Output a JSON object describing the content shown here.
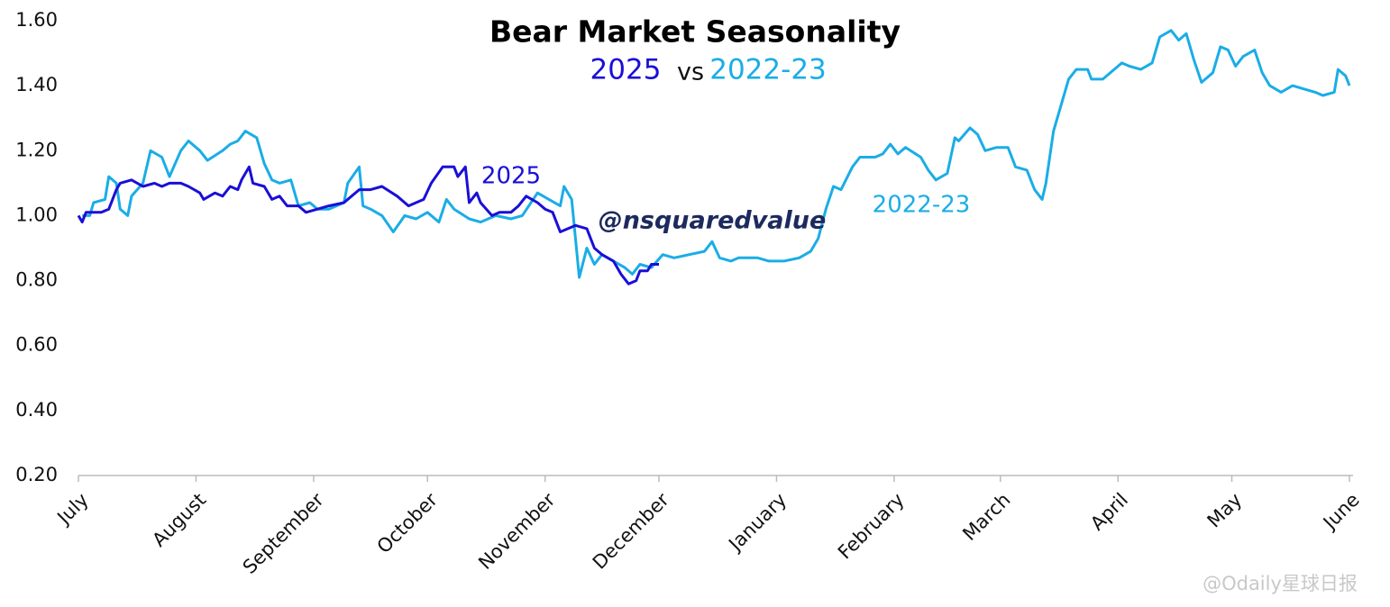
{
  "chart_data": {
    "type": "line",
    "title": "Bear Market Seasonality",
    "subtitle_connector": "vs",
    "xlim": [
      0,
      335
    ],
    "xticks": [
      {
        "value": 0,
        "label": "July"
      },
      {
        "value": 31,
        "label": "August"
      },
      {
        "value": 62,
        "label": "September"
      },
      {
        "value": 92,
        "label": "October"
      },
      {
        "value": 123,
        "label": "November"
      },
      {
        "value": 153,
        "label": "December"
      },
      {
        "value": 184,
        "label": "January"
      },
      {
        "value": 215,
        "label": "February"
      },
      {
        "value": 243,
        "label": "March"
      },
      {
        "value": 274,
        "label": "April"
      },
      {
        "value": 304,
        "label": "May"
      },
      {
        "value": 335,
        "label": "June"
      }
    ],
    "ylim": [
      0.2,
      1.6
    ],
    "yticks": [
      {
        "value": 0.2,
        "label": "0.20"
      },
      {
        "value": 0.4,
        "label": "0.40"
      },
      {
        "value": 0.6,
        "label": "0.60"
      },
      {
        "value": 0.8,
        "label": "0.80"
      },
      {
        "value": 1.0,
        "label": "1.00"
      },
      {
        "value": 1.2,
        "label": "1.20"
      },
      {
        "value": 1.4,
        "label": "1.40"
      },
      {
        "value": 1.6,
        "label": "1.60"
      }
    ],
    "series": [
      {
        "name": "2022-23",
        "color": "#1aade6",
        "x": [
          1,
          3,
          4,
          7,
          8,
          10,
          11,
          13,
          14,
          17,
          19,
          22,
          24,
          27,
          29,
          32,
          34,
          38,
          40,
          42,
          44,
          47,
          49,
          51,
          53,
          56,
          58,
          61,
          63,
          66,
          70,
          71,
          74,
          75,
          77,
          80,
          83,
          86,
          89,
          92,
          95,
          97,
          99,
          103,
          106,
          110,
          114,
          117,
          121,
          124,
          127,
          128,
          130,
          131,
          132,
          134,
          136,
          138,
          141,
          144,
          146,
          148,
          151,
          154,
          157,
          161,
          165,
          167,
          169,
          172,
          174,
          179,
          182,
          186,
          190,
          193,
          195,
          197,
          199,
          201,
          204,
          206,
          210,
          212,
          214,
          216,
          218,
          222,
          224,
          226,
          229,
          231,
          232,
          235,
          237,
          239,
          242,
          245,
          247,
          250,
          252,
          254,
          255,
          257,
          258,
          261,
          263,
          266,
          267,
          270,
          273,
          275,
          277,
          280,
          283,
          285,
          288,
          290,
          292,
          294,
          296,
          299,
          301,
          303,
          305,
          307,
          310,
          312,
          314,
          317,
          320,
          323,
          326,
          328,
          331,
          332,
          334,
          335
        ],
        "values": [
          1.0,
          1.0,
          1.04,
          1.05,
          1.12,
          1.1,
          1.02,
          1.0,
          1.06,
          1.1,
          1.2,
          1.18,
          1.12,
          1.2,
          1.23,
          1.2,
          1.17,
          1.2,
          1.22,
          1.23,
          1.26,
          1.24,
          1.16,
          1.11,
          1.1,
          1.11,
          1.03,
          1.04,
          1.02,
          1.02,
          1.04,
          1.1,
          1.15,
          1.03,
          1.02,
          1.0,
          0.95,
          1.0,
          0.99,
          1.01,
          0.98,
          1.05,
          1.02,
          0.99,
          0.98,
          1.0,
          0.99,
          1.0,
          1.07,
          1.05,
          1.03,
          1.09,
          1.05,
          0.93,
          0.81,
          0.9,
          0.85,
          0.88,
          0.86,
          0.84,
          0.82,
          0.85,
          0.84,
          0.88,
          0.87,
          0.88,
          0.89,
          0.92,
          0.87,
          0.86,
          0.87,
          0.87,
          0.86,
          0.86,
          0.87,
          0.89,
          0.93,
          1.02,
          1.09,
          1.08,
          1.15,
          1.18,
          1.18,
          1.19,
          1.22,
          1.19,
          1.21,
          1.18,
          1.14,
          1.11,
          1.13,
          1.24,
          1.23,
          1.27,
          1.25,
          1.2,
          1.21,
          1.21,
          1.15,
          1.14,
          1.08,
          1.05,
          1.1,
          1.26,
          1.3,
          1.42,
          1.45,
          1.45,
          1.42,
          1.42,
          1.45,
          1.47,
          1.46,
          1.45,
          1.47,
          1.55,
          1.57,
          1.54,
          1.56,
          1.48,
          1.41,
          1.44,
          1.52,
          1.51,
          1.46,
          1.49,
          1.51,
          1.44,
          1.4,
          1.38,
          1.4,
          1.39,
          1.38,
          1.37,
          1.38,
          1.45,
          1.43,
          1.4
        ]
      },
      {
        "name": "2025",
        "color": "#1a0fd6",
        "x": [
          0,
          1,
          2,
          4,
          6,
          8,
          10,
          11,
          14,
          17,
          20,
          22,
          24,
          27,
          29,
          32,
          33,
          36,
          38,
          40,
          42,
          43,
          45,
          46,
          49,
          51,
          53,
          55,
          58,
          60,
          63,
          66,
          70,
          72,
          74,
          77,
          80,
          84,
          87,
          89,
          91,
          93,
          96,
          99,
          100,
          102,
          103,
          105,
          106,
          109,
          111,
          114,
          116,
          118,
          121,
          123,
          125,
          127,
          129,
          131,
          134,
          136,
          138,
          141,
          143,
          145,
          147,
          148,
          150,
          151,
          153
        ],
        "values": [
          1.0,
          0.98,
          1.01,
          1.01,
          1.01,
          1.02,
          1.08,
          1.1,
          1.11,
          1.09,
          1.1,
          1.09,
          1.1,
          1.1,
          1.09,
          1.07,
          1.05,
          1.07,
          1.06,
          1.09,
          1.08,
          1.11,
          1.15,
          1.1,
          1.09,
          1.05,
          1.06,
          1.03,
          1.03,
          1.01,
          1.02,
          1.03,
          1.04,
          1.06,
          1.08,
          1.08,
          1.09,
          1.06,
          1.03,
          1.04,
          1.05,
          1.1,
          1.15,
          1.15,
          1.12,
          1.15,
          1.04,
          1.07,
          1.04,
          1.0,
          1.01,
          1.01,
          1.03,
          1.06,
          1.04,
          1.02,
          1.01,
          0.95,
          0.96,
          0.97,
          0.96,
          0.9,
          0.88,
          0.86,
          0.82,
          0.79,
          0.8,
          0.83,
          0.83,
          0.85,
          0.85
        ]
      }
    ],
    "annotations": [
      {
        "text": "2025"
      },
      {
        "text": "2022-23"
      },
      {
        "text": "@nsquaredvalue"
      },
      {
        "text": "@Odaily星球日报"
      }
    ]
  }
}
